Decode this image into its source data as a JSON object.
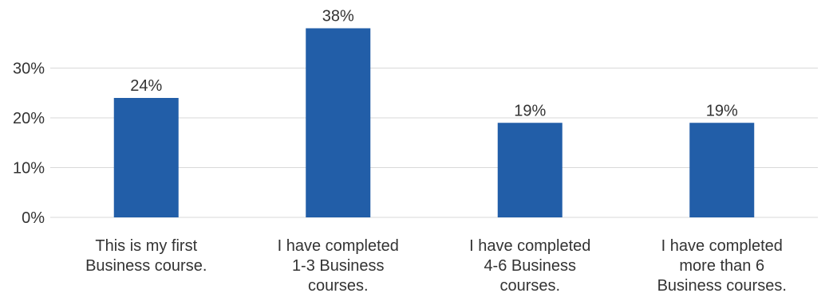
{
  "chart_data": {
    "type": "bar",
    "categories": [
      [
        "This is my first",
        "Business course."
      ],
      [
        "I have completed",
        "1-3 Business",
        "courses."
      ],
      [
        "I have completed",
        "4-6 Business",
        "courses."
      ],
      [
        "I have completed",
        "more than 6",
        "Business courses."
      ]
    ],
    "values": [
      24,
      38,
      19,
      19
    ],
    "data_labels": [
      "24%",
      "38%",
      "19%",
      "19%"
    ],
    "y_ticks": [
      0,
      10,
      20,
      30
    ],
    "y_tick_labels": [
      "0%",
      "10%",
      "20%",
      "30%"
    ],
    "ylim": [
      0,
      38
    ],
    "grid": true,
    "bar_color": "#225ea8",
    "title": "",
    "xlabel": "",
    "ylabel": ""
  }
}
